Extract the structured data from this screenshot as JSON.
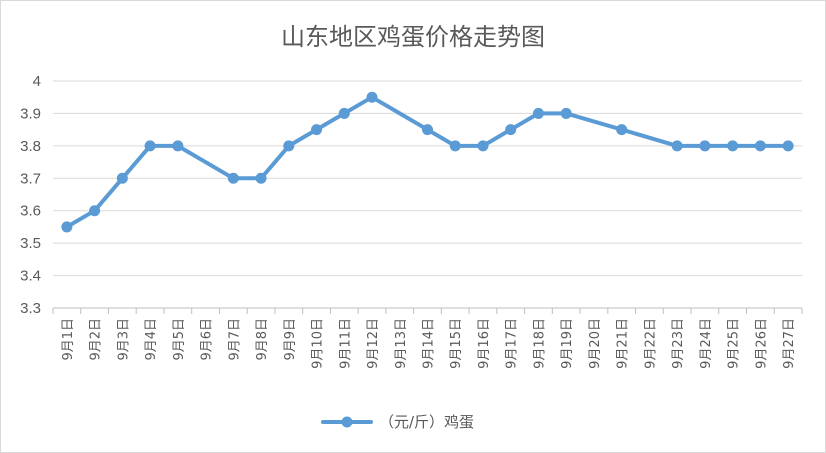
{
  "chart_data": {
    "type": "line",
    "title": "山东地区鸡蛋价格走势图",
    "xlabel": "",
    "ylabel": "",
    "ylim": [
      3.3,
      4.0
    ],
    "yticks": [
      "3.3",
      "3.4",
      "3.5",
      "3.6",
      "3.7",
      "3.8",
      "3.9",
      "4"
    ],
    "grid": true,
    "legend_position": "bottom",
    "categories": [
      "9月1日",
      "9月2日",
      "9月3日",
      "9月4日",
      "9月5日",
      "9月6日",
      "9月7日",
      "9月8日",
      "9月9日",
      "9月10日",
      "9月11日",
      "9月12日",
      "9月13日",
      "9月14日",
      "9月15日",
      "9月16日",
      "9月17日",
      "9月18日",
      "9月19日",
      "9月20日",
      "9月21日",
      "9月22日",
      "9月23日",
      "9月24日",
      "9月25日",
      "9月26日",
      "9月27日"
    ],
    "series": [
      {
        "name": "（元/斤）鸡蛋",
        "color": "#5b9bd5",
        "values": [
          3.55,
          3.6,
          3.7,
          3.8,
          3.8,
          null,
          3.7,
          3.7,
          3.8,
          3.85,
          3.9,
          3.95,
          null,
          3.85,
          3.8,
          3.8,
          3.85,
          3.9,
          3.9,
          null,
          3.85,
          null,
          3.8,
          3.8,
          3.8,
          3.8,
          3.8
        ]
      }
    ]
  }
}
